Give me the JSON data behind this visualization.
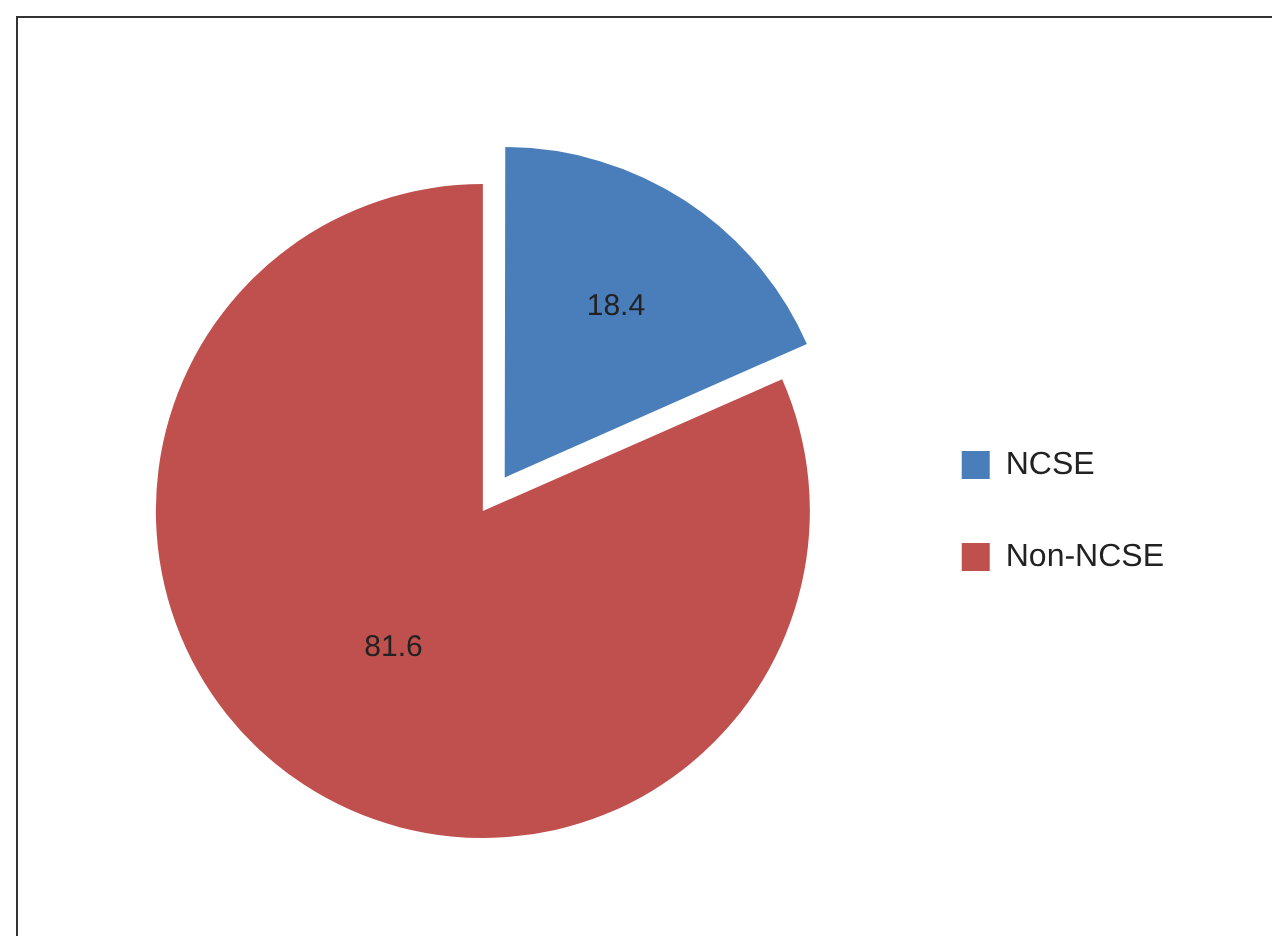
{
  "chart_data": {
    "type": "pie",
    "categories": [
      "NCSE",
      "Non-NCSE"
    ],
    "values": [
      18.4,
      81.6
    ],
    "colors": [
      "#4a7ebb",
      "#c0504d"
    ],
    "data_labels": true,
    "legend": "right"
  }
}
